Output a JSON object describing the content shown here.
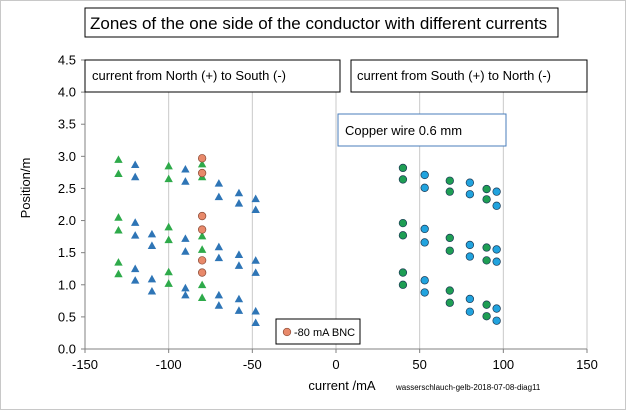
{
  "chart_data": {
    "type": "scatter",
    "title": "Zones of the one side of the conductor with different currents",
    "xlabel": "current /mA",
    "ylabel": "Position/m",
    "xlim": [
      -150,
      150
    ],
    "ylim": [
      0.0,
      4.5
    ],
    "x_ticks": [
      -150,
      -100,
      -50,
      0,
      50,
      100,
      150
    ],
    "y_ticks": [
      0.0,
      0.5,
      1.0,
      1.5,
      2.0,
      2.5,
      3.0,
      3.5,
      4.0,
      4.5
    ],
    "x_tick_labels": [
      "-150",
      "-100",
      "-50",
      "0",
      "50",
      "100",
      "150"
    ],
    "y_tick_labels": [
      "0.0",
      "0.5",
      "1.0",
      "1.5",
      "2.0",
      "2.5",
      "3.0",
      "3.5",
      "4.0",
      "4.5"
    ],
    "grid": "vertical",
    "annotations": {
      "left_box": "current from North (+) to South (-)",
      "right_box": "current from South (+) to North (-)",
      "wire_box": "Copper wire 0.6 mm",
      "watermark": "wasserschlauch-gelb-2018-07-08-diag11"
    },
    "legend": {
      "entry": "-80 mA BNC",
      "placement": "bottom-center-left"
    },
    "series": [
      {
        "marker": "triangle",
        "color": "#2eaa4a",
        "points": [
          [
            -130,
            2.95
          ],
          [
            -130,
            2.73
          ],
          [
            -130,
            2.05
          ],
          [
            -130,
            1.85
          ],
          [
            -130,
            1.35
          ],
          [
            -130,
            1.17
          ],
          [
            -100,
            2.85
          ],
          [
            -100,
            2.65
          ],
          [
            -100,
            1.9
          ],
          [
            -100,
            1.7
          ],
          [
            -100,
            1.2
          ],
          [
            -100,
            1.02
          ],
          [
            -80,
            2.88
          ],
          [
            -80,
            2.68
          ],
          [
            -80,
            1.76
          ],
          [
            -80,
            1.55
          ],
          [
            -80,
            1.0
          ],
          [
            -80,
            0.8
          ]
        ]
      },
      {
        "marker": "triangle",
        "color": "#2e75b6",
        "points": [
          [
            -120,
            2.87
          ],
          [
            -120,
            2.68
          ],
          [
            -120,
            1.97
          ],
          [
            -120,
            1.77
          ],
          [
            -120,
            1.25
          ],
          [
            -120,
            1.07
          ],
          [
            -110,
            1.79
          ],
          [
            -110,
            1.61
          ],
          [
            -110,
            1.09
          ],
          [
            -110,
            0.9
          ],
          [
            -90,
            2.8
          ],
          [
            -90,
            2.61
          ],
          [
            -90,
            1.72
          ],
          [
            -90,
            1.52
          ],
          [
            -90,
            0.95
          ],
          [
            -90,
            0.84
          ],
          [
            -70,
            2.58
          ],
          [
            -70,
            2.37
          ],
          [
            -70,
            1.59
          ],
          [
            -70,
            1.42
          ],
          [
            -70,
            0.84
          ],
          [
            -70,
            0.68
          ],
          [
            -58,
            2.43
          ],
          [
            -58,
            2.27
          ],
          [
            -58,
            1.47
          ],
          [
            -58,
            1.3
          ],
          [
            -58,
            0.78
          ],
          [
            -58,
            0.6
          ],
          [
            -48,
            2.34
          ],
          [
            -48,
            2.17
          ],
          [
            -48,
            1.38
          ],
          [
            -48,
            1.19
          ],
          [
            -48,
            0.59
          ],
          [
            -48,
            0.41
          ]
        ]
      },
      {
        "marker": "circle",
        "color": "#e8896a",
        "name": "-80 mA BNC",
        "points": [
          [
            -80,
            2.97
          ],
          [
            -80,
            2.74
          ],
          [
            -80,
            2.07
          ],
          [
            -80,
            1.86
          ],
          [
            -80,
            1.38
          ],
          [
            -80,
            1.19
          ]
        ]
      },
      {
        "marker": "circle",
        "color": "#1e9e54",
        "points": [
          [
            40,
            2.82
          ],
          [
            40,
            2.64
          ],
          [
            40,
            1.96
          ],
          [
            40,
            1.77
          ],
          [
            40,
            1.19
          ],
          [
            40,
            1.0
          ],
          [
            68,
            2.62
          ],
          [
            68,
            2.45
          ],
          [
            68,
            1.73
          ],
          [
            68,
            1.53
          ],
          [
            68,
            0.91
          ],
          [
            68,
            0.72
          ],
          [
            90,
            2.49
          ],
          [
            90,
            2.33
          ],
          [
            90,
            1.58
          ],
          [
            90,
            1.38
          ],
          [
            90,
            0.69
          ],
          [
            90,
            0.51
          ]
        ]
      },
      {
        "marker": "circle",
        "color": "#21a3de",
        "points": [
          [
            53,
            2.71
          ],
          [
            53,
            2.51
          ],
          [
            53,
            1.87
          ],
          [
            53,
            1.66
          ],
          [
            53,
            1.07
          ],
          [
            53,
            0.88
          ],
          [
            80,
            2.59
          ],
          [
            80,
            2.41
          ],
          [
            80,
            1.62
          ],
          [
            80,
            1.44
          ],
          [
            80,
            0.78
          ],
          [
            80,
            0.58
          ],
          [
            96,
            2.45
          ],
          [
            96,
            2.23
          ],
          [
            96,
            1.55
          ],
          [
            96,
            1.36
          ],
          [
            96,
            0.63
          ],
          [
            96,
            0.44
          ]
        ]
      }
    ]
  }
}
